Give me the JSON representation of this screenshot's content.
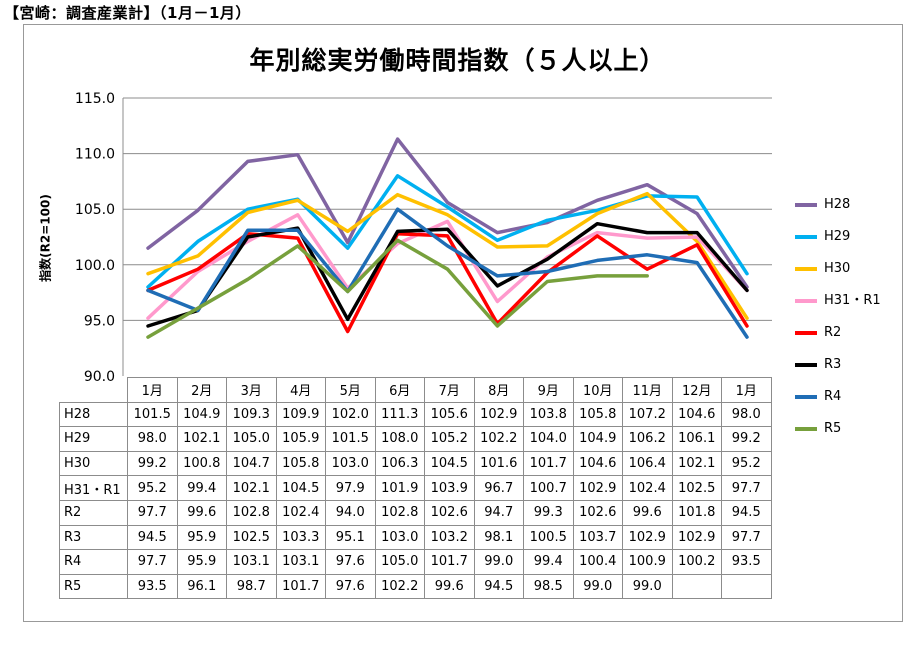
{
  "header": "【宮崎：調査産業計】（1月－1月）",
  "chart_data": {
    "type": "line",
    "title": "年別総実労働時間指数（５人以上）",
    "ylabel": "指数(R2=100)",
    "ylim": [
      90.0,
      115.0
    ],
    "yticks": [
      "90.0",
      "95.0",
      "100.0",
      "105.0",
      "110.0",
      "115.0"
    ],
    "categories": [
      "1月",
      "2月",
      "3月",
      "4月",
      "5月",
      "6月",
      "7月",
      "8月",
      "9月",
      "10月",
      "11月",
      "12月",
      "1月"
    ],
    "grid": true,
    "legend_position": "right",
    "series": [
      {
        "name": "H28",
        "color": "#8064a2",
        "values": [
          101.5,
          104.9,
          109.3,
          109.9,
          102.0,
          111.3,
          105.6,
          102.9,
          103.8,
          105.8,
          107.2,
          104.6,
          98.0
        ]
      },
      {
        "name": "H29",
        "color": "#00b0f0",
        "values": [
          98.0,
          102.1,
          105.0,
          105.9,
          101.5,
          108.0,
          105.2,
          102.2,
          104.0,
          104.9,
          106.2,
          106.1,
          99.2
        ]
      },
      {
        "name": "H30",
        "color": "#ffc000",
        "values": [
          99.2,
          100.8,
          104.7,
          105.8,
          103.0,
          106.3,
          104.5,
          101.6,
          101.7,
          104.6,
          106.4,
          102.1,
          95.2
        ]
      },
      {
        "name": "H31・R1",
        "color": "#ff99cc",
        "values": [
          95.2,
          99.4,
          102.1,
          104.5,
          97.9,
          101.9,
          103.9,
          96.7,
          100.7,
          102.9,
          102.4,
          102.5,
          97.7
        ]
      },
      {
        "name": "R2",
        "color": "#ff0000",
        "values": [
          97.7,
          99.6,
          102.8,
          102.4,
          94.0,
          102.8,
          102.6,
          94.7,
          99.3,
          102.6,
          99.6,
          101.8,
          94.5
        ]
      },
      {
        "name": "R3",
        "color": "#000000",
        "values": [
          94.5,
          95.9,
          102.5,
          103.3,
          95.1,
          103.0,
          103.2,
          98.1,
          100.5,
          103.7,
          102.9,
          102.9,
          97.7
        ]
      },
      {
        "name": "R4",
        "color": "#1f6db5",
        "values": [
          97.7,
          95.9,
          103.1,
          103.1,
          97.6,
          105.0,
          101.7,
          99.0,
          99.4,
          100.4,
          100.9,
          100.2,
          93.5
        ]
      },
      {
        "name": "R5",
        "color": "#77a03c",
        "values": [
          93.5,
          96.1,
          98.7,
          101.7,
          97.6,
          102.2,
          99.6,
          94.5,
          98.5,
          99.0,
          99.0,
          null,
          null
        ]
      }
    ],
    "table": {
      "rows": [
        {
          "label": "H28",
          "cells": [
            "101.5",
            "104.9",
            "109.3",
            "109.9",
            "102.0",
            "111.3",
            "105.6",
            "102.9",
            "103.8",
            "105.8",
            "107.2",
            "104.6",
            "98.0"
          ]
        },
        {
          "label": "H29",
          "cells": [
            "98.0",
            "102.1",
            "105.0",
            "105.9",
            "101.5",
            "108.0",
            "105.2",
            "102.2",
            "104.0",
            "104.9",
            "106.2",
            "106.1",
            "99.2"
          ]
        },
        {
          "label": "H30",
          "cells": [
            "99.2",
            "100.8",
            "104.7",
            "105.8",
            "103.0",
            "106.3",
            "104.5",
            "101.6",
            "101.7",
            "104.6",
            "106.4",
            "102.1",
            "95.2"
          ]
        },
        {
          "label": "H31・R1",
          "cells": [
            "95.2",
            "99.4",
            "102.1",
            "104.5",
            "97.9",
            "101.9",
            "103.9",
            "96.7",
            "100.7",
            "102.9",
            "102.4",
            "102.5",
            "97.7"
          ]
        },
        {
          "label": "R2",
          "cells": [
            "97.7",
            "99.6",
            "102.8",
            "102.4",
            "94.0",
            "102.8",
            "102.6",
            "94.7",
            "99.3",
            "102.6",
            "99.6",
            "101.8",
            "94.5"
          ]
        },
        {
          "label": "R3",
          "cells": [
            "94.5",
            "95.9",
            "102.5",
            "103.3",
            "95.1",
            "103.0",
            "103.2",
            "98.1",
            "100.5",
            "103.7",
            "102.9",
            "102.9",
            "97.7"
          ]
        },
        {
          "label": "R4",
          "cells": [
            "97.7",
            "95.9",
            "103.1",
            "103.1",
            "97.6",
            "105.0",
            "101.7",
            "99.0",
            "99.4",
            "100.4",
            "100.9",
            "100.2",
            "93.5"
          ]
        },
        {
          "label": "R5",
          "cells": [
            "93.5",
            "96.1",
            "98.7",
            "101.7",
            "97.6",
            "102.2",
            "99.6",
            "94.5",
            "98.5",
            "99.0",
            "99.0",
            "",
            ""
          ]
        }
      ]
    }
  }
}
